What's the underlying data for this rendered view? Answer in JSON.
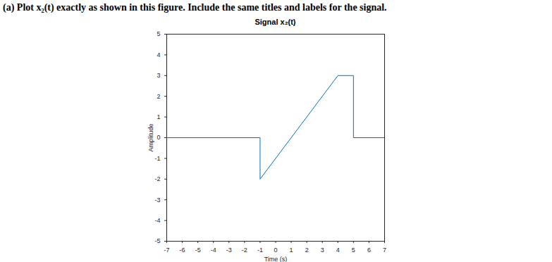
{
  "chart_data": {
    "type": "line",
    "annotations": [
      "(a) Plot x₂(t) exactly as shown in this figure. Include the same titles and labels for the signal."
    ],
    "title": "Signal x₂(t)",
    "x_label": "Time (s)",
    "y_label": "Amplitude",
    "x": [
      -7,
      -1,
      -1,
      4,
      5,
      5,
      7
    ],
    "values": [
      0,
      0,
      -2,
      3,
      3,
      0,
      0
    ],
    "color": "#0072bd",
    "line_style": "solid",
    "grid": false,
    "xlim": [
      -7,
      7
    ],
    "xticks": [
      -7,
      -6,
      -5,
      -4,
      -3,
      -2,
      -1,
      0,
      1,
      2,
      3,
      4,
      5,
      6,
      7
    ],
    "ylim": [
      -5,
      5
    ],
    "yticks": [
      -5,
      -4,
      -3,
      -2,
      -1,
      0,
      1,
      2,
      3,
      4,
      5
    ]
  }
}
